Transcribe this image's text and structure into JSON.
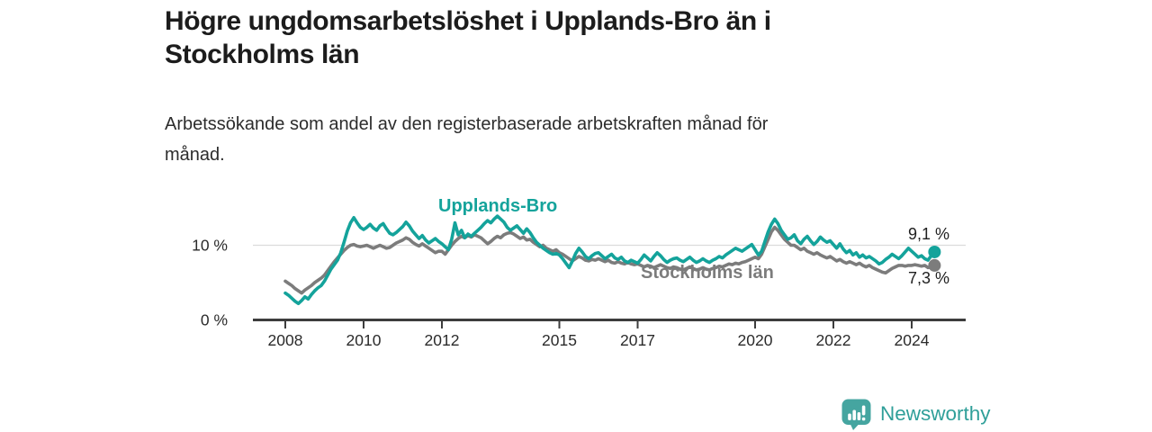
{
  "header": {
    "title": "Högre ungdomsarbetslöshet i Upplands-Bro än i\nStockholms län",
    "subtitle": "Arbetssökande som andel av den registerbaserade arbetskraften månad för\nmånad."
  },
  "branding": {
    "logo_text": "Newsworthy",
    "logo_color": "#45a5a0",
    "logo_text_color": "#2f9f99"
  },
  "chart_data": {
    "type": "line",
    "title": "",
    "xlabel": "",
    "ylabel": "",
    "x_start": 2008.0,
    "x_step_months": 1,
    "x_end_label_note": "monthly data Jan 2008 - Aug 2024",
    "xlim": [
      2007.2,
      2025.4
    ],
    "ylim": [
      0,
      15.5
    ],
    "grid": "horizontal-at-10-only",
    "grid_color": "#dcdcdc",
    "axis_color": "#3d3d3d",
    "xticks": [
      {
        "year": 2008,
        "label": "2008"
      },
      {
        "year": 2010,
        "label": "2010"
      },
      {
        "year": 2012,
        "label": "2012"
      },
      {
        "year": 2015,
        "label": "2015"
      },
      {
        "year": 2017,
        "label": "2017"
      },
      {
        "year": 2020,
        "label": "2020"
      },
      {
        "year": 2022,
        "label": "2022"
      },
      {
        "year": 2024,
        "label": "2024"
      }
    ],
    "yticks": [
      {
        "value": 0,
        "label": "0 %"
      },
      {
        "value": 10,
        "label": "10 %"
      }
    ],
    "legend_position": "labels-on-chart",
    "series": [
      {
        "name": "Upplands-Bro",
        "color": "#14a39b",
        "end_label": "9,1 %",
        "end_value": 9.1,
        "values": [
          3.6,
          3.3,
          2.9,
          2.5,
          2.2,
          2.6,
          3.1,
          2.8,
          3.4,
          3.9,
          4.3,
          4.6,
          5.2,
          6.0,
          6.8,
          7.4,
          8.0,
          9.0,
          10.4,
          11.9,
          13.0,
          13.7,
          13.0,
          12.4,
          12.1,
          12.4,
          12.8,
          12.3,
          12.0,
          12.6,
          12.9,
          12.2,
          11.6,
          11.4,
          11.7,
          12.1,
          12.5,
          13.1,
          12.6,
          11.9,
          11.4,
          10.9,
          11.3,
          10.7,
          10.3,
          10.6,
          10.9,
          10.5,
          10.2,
          9.8,
          9.4,
          10.8,
          13.0,
          11.4,
          12.0,
          11.0,
          11.5,
          11.2,
          11.6,
          12.0,
          12.4,
          12.9,
          13.3,
          13.0,
          13.5,
          13.9,
          13.5,
          13.1,
          12.4,
          12.0,
          12.3,
          12.6,
          12.1,
          11.6,
          12.2,
          11.7,
          11.0,
          10.4,
          10.0,
          9.6,
          9.3,
          9.0,
          8.8,
          8.9,
          8.7,
          8.2,
          7.6,
          7.0,
          7.9,
          8.9,
          9.6,
          9.1,
          8.5,
          8.2,
          8.6,
          8.9,
          9.0,
          8.6,
          8.2,
          8.5,
          8.8,
          8.3,
          8.1,
          8.4,
          7.9,
          7.7,
          8.0,
          7.8,
          7.6,
          8.1,
          8.7,
          8.3,
          7.9,
          8.5,
          9.0,
          8.6,
          8.1,
          7.7,
          8.0,
          8.2,
          8.3,
          8.0,
          7.8,
          8.1,
          8.4,
          8.0,
          7.7,
          7.9,
          8.2,
          7.9,
          7.7,
          8.0,
          8.2,
          8.5,
          8.3,
          8.7,
          9.0,
          9.3,
          9.6,
          9.4,
          9.2,
          9.5,
          9.8,
          10.1,
          9.4,
          8.7,
          9.2,
          10.5,
          11.8,
          12.8,
          13.5,
          12.9,
          12.0,
          11.4,
          10.8,
          11.0,
          11.4,
          10.6,
          10.2,
          10.8,
          11.2,
          10.6,
          10.1,
          10.5,
          11.1,
          10.7,
          10.4,
          10.6,
          10.1,
          9.6,
          10.2,
          9.5,
          9.0,
          9.3,
          8.7,
          9.0,
          8.4,
          8.7,
          8.3,
          8.5,
          8.2,
          7.9,
          7.5,
          7.7,
          8.1,
          8.4,
          8.8,
          8.5,
          8.2,
          8.6,
          9.1,
          9.6,
          9.2,
          8.8,
          8.4,
          8.6,
          8.2,
          8.0,
          8.6,
          9.1
        ]
      },
      {
        "name": "Stockholms län",
        "color": "#7c7c7c",
        "end_label": "7,3 %",
        "end_value": 7.3,
        "values": [
          5.2,
          4.9,
          4.6,
          4.2,
          3.9,
          3.6,
          4.0,
          4.3,
          4.6,
          5.0,
          5.3,
          5.6,
          6.0,
          6.6,
          7.2,
          7.8,
          8.3,
          8.8,
          9.3,
          9.7,
          10.0,
          10.1,
          9.9,
          9.8,
          9.9,
          10.0,
          9.8,
          9.6,
          9.8,
          10.0,
          9.8,
          9.6,
          9.7,
          10.0,
          10.3,
          10.5,
          10.7,
          11.0,
          10.8,
          10.4,
          10.1,
          9.9,
          10.2,
          9.9,
          9.6,
          9.3,
          9.0,
          9.2,
          9.2,
          8.8,
          9.4,
          10.0,
          10.5,
          10.9,
          11.2,
          11.0,
          11.3,
          11.1,
          11.4,
          11.2,
          11.0,
          10.6,
          10.2,
          10.5,
          10.9,
          11.2,
          11.0,
          11.4,
          11.6,
          11.7,
          11.5,
          11.2,
          10.9,
          11.1,
          10.7,
          10.8,
          10.4,
          10.1,
          9.8,
          10.0,
          9.6,
          9.4,
          9.2,
          9.4,
          9.0,
          8.8,
          8.5,
          8.2,
          7.9,
          8.2,
          8.5,
          8.3,
          8.0,
          7.9,
          8.1,
          8.0,
          8.2,
          8.0,
          7.8,
          8.0,
          7.7,
          7.6,
          7.8,
          7.6,
          7.5,
          7.7,
          7.5,
          7.4,
          7.5,
          7.3,
          7.1,
          7.3,
          7.2,
          7.0,
          7.2,
          7.4,
          7.2,
          7.0,
          6.9,
          7.1,
          7.0,
          6.8,
          6.7,
          6.9,
          7.1,
          6.9,
          6.7,
          6.8,
          7.0,
          6.8,
          6.7,
          6.9,
          7.0,
          7.2,
          7.1,
          7.3,
          7.5,
          7.4,
          7.6,
          7.5,
          7.7,
          7.8,
          8.0,
          8.2,
          8.4,
          8.2,
          8.8,
          9.8,
          10.8,
          11.8,
          12.4,
          12.0,
          11.4,
          10.8,
          10.4,
          10.0,
          10.0,
          9.7,
          9.4,
          9.6,
          9.2,
          9.0,
          8.8,
          9.0,
          8.7,
          8.5,
          8.3,
          8.5,
          8.2,
          7.9,
          8.1,
          7.8,
          7.6,
          7.8,
          7.6,
          7.4,
          7.6,
          7.3,
          7.1,
          7.3,
          7.0,
          6.8,
          6.6,
          6.4,
          6.3,
          6.6,
          6.9,
          7.1,
          7.3,
          7.3,
          7.2,
          7.3,
          7.3,
          7.4,
          7.3,
          7.2,
          7.3,
          7.0,
          7.1,
          7.3
        ]
      }
    ]
  }
}
